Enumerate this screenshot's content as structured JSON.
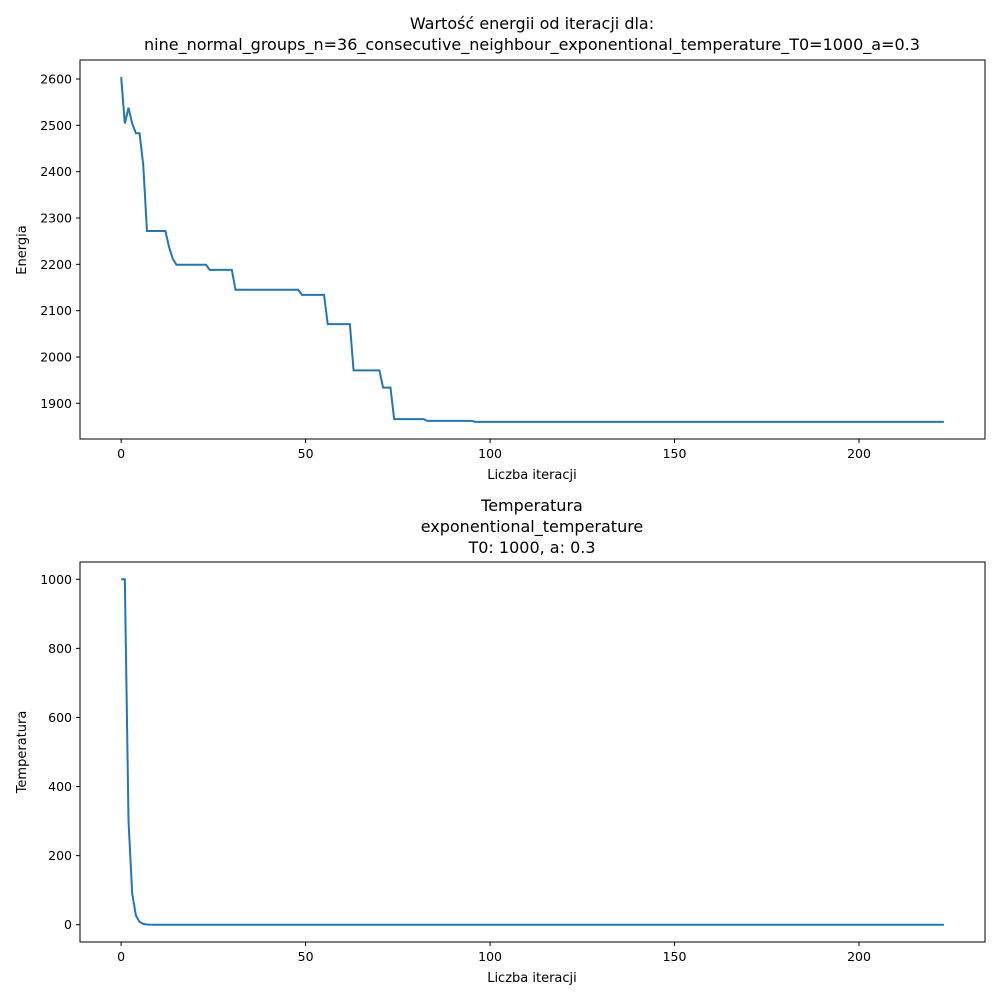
{
  "line_color": "#1f77b4",
  "chart_data": [
    {
      "type": "line",
      "title": [
        "Wartość energii od iteracji dla:",
        "nine_normal_groups_n=36_consecutive_neighbour_exponentional_temperature_T0=1000_a=0.3"
      ],
      "xlabel": "Liczba iteracji",
      "ylabel": "Energia",
      "xlim": [
        -11.15,
        234.15
      ],
      "ylim": [
        1823,
        2641
      ],
      "xticks": [
        0,
        50,
        100,
        150,
        200
      ],
      "yticks": [
        1900,
        2000,
        2100,
        2200,
        2300,
        2400,
        2500,
        2600
      ],
      "grid": false,
      "series": [
        {
          "points": [
            [
              0,
              2604
            ],
            [
              1,
              2504
            ],
            [
              2,
              2538
            ],
            [
              3,
              2504
            ],
            [
              4,
              2483
            ],
            [
              5,
              2483
            ],
            [
              6,
              2414
            ],
            [
              7,
              2272
            ],
            [
              8,
              2272
            ],
            [
              12,
              2272
            ],
            [
              13,
              2237
            ],
            [
              14,
              2212
            ],
            [
              15,
              2199
            ],
            [
              23,
              2199
            ],
            [
              24,
              2188
            ],
            [
              30,
              2188
            ],
            [
              31,
              2145
            ],
            [
              48,
              2145
            ],
            [
              49,
              2134
            ],
            [
              55,
              2134
            ],
            [
              56,
              2071
            ],
            [
              62,
              2071
            ],
            [
              63,
              1971
            ],
            [
              70,
              1971
            ],
            [
              71,
              1934
            ],
            [
              73,
              1934
            ],
            [
              74,
              1866
            ],
            [
              82,
              1866
            ],
            [
              83,
              1862
            ],
            [
              95,
              1862
            ],
            [
              96,
              1860
            ],
            [
              223,
              1860
            ]
          ]
        }
      ]
    },
    {
      "type": "line",
      "title": [
        "Temperatura",
        "exponentional_temperature",
        "T0: 1000, a: 0.3"
      ],
      "xlabel": "Liczba iteracji",
      "ylabel": "Temperatura",
      "xlim": [
        -11.15,
        234.15
      ],
      "ylim": [
        -50,
        1050
      ],
      "xticks": [
        0,
        50,
        100,
        150,
        200
      ],
      "yticks": [
        0,
        200,
        400,
        600,
        800,
        1000
      ],
      "grid": false,
      "series": [
        {
          "points": [
            [
              0,
              1000
            ],
            [
              1,
              1000
            ],
            [
              2,
              300
            ],
            [
              3,
              90
            ],
            [
              4,
              27
            ],
            [
              5,
              8.1
            ],
            [
              6,
              2.43
            ],
            [
              7,
              0.73
            ],
            [
              8,
              0.22
            ],
            [
              9,
              0.07
            ],
            [
              10,
              0.02
            ],
            [
              223,
              0
            ]
          ]
        }
      ]
    }
  ]
}
